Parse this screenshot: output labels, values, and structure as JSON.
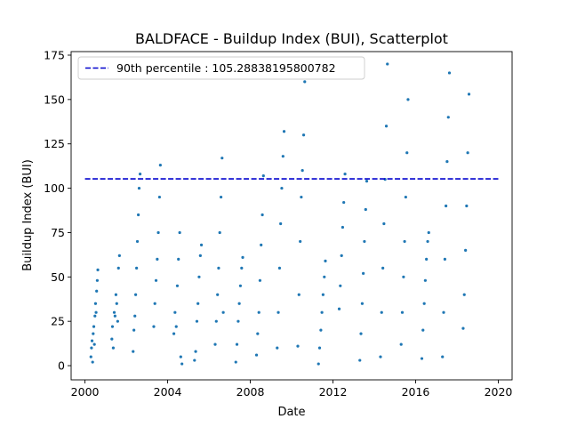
{
  "chart_data": {
    "type": "scatter",
    "title": "BALDFACE - Buildup Index (BUI), Scatterplot",
    "xlabel": "Date",
    "ylabel": "Buildup Index (BUI)",
    "xlim": [
      "1999-05-01",
      "2020-09-01"
    ],
    "ylim": [
      -8,
      177
    ],
    "x_ticks": [
      "2000",
      "2004",
      "2008",
      "2012",
      "2016",
      "2020"
    ],
    "y_ticks": [
      0,
      25,
      50,
      75,
      100,
      125,
      150,
      175
    ],
    "grid": false,
    "legend_position": "upper left",
    "reference_line": {
      "name": "90th percentile : 105.28838195800782",
      "y": 105.28838195800782,
      "x_range": [
        "2000-01-01",
        "2020-01-01"
      ],
      "color": "#0000cd",
      "style": "dashed"
    },
    "series": [
      {
        "color": "#1f77b4",
        "point_groups": [
          {
            "x": [
              "2000-04-15",
              "2000-04-25",
              "2000-05-05",
              "2000-05-15",
              "2000-05-25",
              "2000-06-05",
              "2000-06-15",
              "2000-06-25",
              "2000-07-05",
              "2000-07-15",
              "2000-07-25",
              "2000-08-05",
              "2000-08-15"
            ],
            "y": [
              5,
              10,
              14,
              2,
              18,
              22,
              12,
              28,
              35,
              30,
              42,
              48,
              54
            ]
          },
          {
            "x": [
              "2001-04-20",
              "2001-05-01",
              "2001-05-15",
              "2001-06-01",
              "2001-06-15",
              "2001-07-01",
              "2001-07-15",
              "2001-08-01",
              "2001-08-15",
              "2001-09-01"
            ],
            "y": [
              15,
              22,
              10,
              30,
              28,
              40,
              35,
              25,
              55,
              62
            ]
          },
          {
            "x": [
              "2002-05-01",
              "2002-05-15",
              "2002-06-01",
              "2002-06-15",
              "2002-07-01",
              "2002-07-15",
              "2002-08-01",
              "2002-08-15",
              "2002-09-01"
            ],
            "y": [
              8,
              20,
              28,
              40,
              55,
              70,
              85,
              100,
              108
            ]
          },
          {
            "x": [
              "2003-05-01",
              "2003-05-20",
              "2003-06-10",
              "2003-07-01",
              "2003-07-20",
              "2003-08-10",
              "2003-08-25"
            ],
            "y": [
              22,
              35,
              48,
              60,
              75,
              95,
              113
            ]
          },
          {
            "x": [
              "2004-04-20",
              "2004-05-10",
              "2004-06-01",
              "2004-06-20",
              "2004-07-10",
              "2004-08-01",
              "2004-08-20",
              "2004-09-10"
            ],
            "y": [
              18,
              30,
              22,
              45,
              60,
              75,
              5,
              1
            ]
          },
          {
            "x": [
              "2005-04-20",
              "2005-05-10",
              "2005-06-01",
              "2005-06-20",
              "2005-07-10",
              "2005-08-01",
              "2005-08-20"
            ],
            "y": [
              3,
              8,
              25,
              35,
              50,
              62,
              68
            ]
          },
          {
            "x": [
              "2006-04-20",
              "2006-05-10",
              "2006-06-01",
              "2006-06-20",
              "2006-07-10",
              "2006-08-01",
              "2006-08-20",
              "2006-09-10"
            ],
            "y": [
              12,
              25,
              40,
              55,
              75,
              95,
              117,
              30
            ]
          },
          {
            "x": [
              "2007-04-20",
              "2007-05-10",
              "2007-06-01",
              "2007-06-20",
              "2007-07-10",
              "2007-08-01",
              "2007-08-20"
            ],
            "y": [
              2,
              12,
              25,
              35,
              45,
              55,
              61
            ]
          },
          {
            "x": [
              "2008-04-20",
              "2008-05-10",
              "2008-06-01",
              "2008-06-20",
              "2008-07-10",
              "2008-08-01",
              "2008-08-20"
            ],
            "y": [
              6,
              18,
              30,
              48,
              68,
              85,
              107
            ]
          },
          {
            "x": [
              "2009-04-20",
              "2009-05-10",
              "2009-06-01",
              "2009-06-20",
              "2009-07-10",
              "2009-08-01",
              "2009-08-20"
            ],
            "y": [
              10,
              30,
              55,
              80,
              100,
              118,
              132
            ]
          },
          {
            "x": [
              "2010-04-20",
              "2010-05-10",
              "2010-06-01",
              "2010-06-20",
              "2010-07-10",
              "2010-08-01",
              "2010-08-20"
            ],
            "y": [
              11,
              40,
              70,
              95,
              110,
              130,
              160
            ]
          },
          {
            "x": [
              "2011-04-20",
              "2011-05-10",
              "2011-06-01",
              "2011-06-20",
              "2011-07-10",
              "2011-08-01",
              "2011-08-20"
            ],
            "y": [
              1,
              10,
              20,
              30,
              40,
              50,
              59
            ]
          },
          {
            "x": [
              "2012-04-20",
              "2012-05-10",
              "2012-06-01",
              "2012-06-20",
              "2012-07-10",
              "2012-08-01"
            ],
            "y": [
              32,
              45,
              62,
              78,
              92,
              108
            ]
          },
          {
            "x": [
              "2013-04-20",
              "2013-05-10",
              "2013-06-01",
              "2013-06-20",
              "2013-07-10",
              "2013-08-01",
              "2013-08-20"
            ],
            "y": [
              3,
              18,
              35,
              52,
              70,
              88,
              104
            ]
          },
          {
            "x": [
              "2014-04-20",
              "2014-05-10",
              "2014-06-01",
              "2014-06-20",
              "2014-07-10",
              "2014-08-01",
              "2014-08-20"
            ],
            "y": [
              5,
              30,
              55,
              80,
              105,
              135,
              170
            ]
          },
          {
            "x": [
              "2015-04-20",
              "2015-05-10",
              "2015-06-01",
              "2015-06-20",
              "2015-07-10",
              "2015-08-01",
              "2015-08-20"
            ],
            "y": [
              12,
              30,
              50,
              70,
              95,
              120,
              150
            ]
          },
          {
            "x": [
              "2016-04-20",
              "2016-05-10",
              "2016-06-01",
              "2016-06-20",
              "2016-07-10",
              "2016-08-01",
              "2016-08-20"
            ],
            "y": [
              4,
              20,
              35,
              48,
              60,
              70,
              75
            ]
          },
          {
            "x": [
              "2017-04-20",
              "2017-05-10",
              "2017-06-01",
              "2017-06-20",
              "2017-07-10",
              "2017-08-01",
              "2017-08-20"
            ],
            "y": [
              5,
              30,
              60,
              90,
              115,
              140,
              165
            ]
          },
          {
            "x": [
              "2018-04-20",
              "2018-05-10",
              "2018-06-01",
              "2018-06-20",
              "2018-07-10",
              "2018-08-01"
            ],
            "y": [
              21,
              40,
              65,
              90,
              120,
              153
            ]
          }
        ]
      }
    ]
  }
}
